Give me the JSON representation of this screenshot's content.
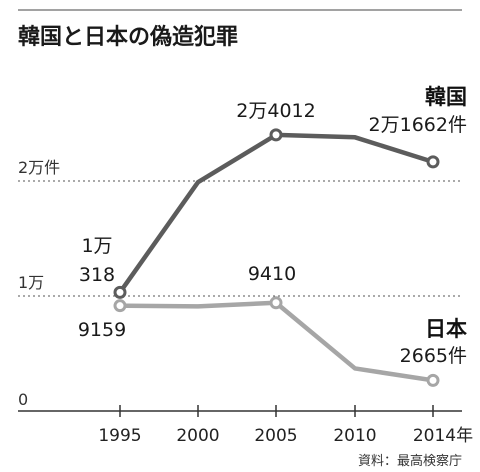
{
  "chart_data": {
    "type": "line",
    "title": "韓国と日本の偽造犯罪",
    "x": [
      1995,
      2000,
      2005,
      2010,
      2014
    ],
    "x_tick_labels": [
      "1995",
      "2000",
      "2005",
      "2010",
      "2014年"
    ],
    "y_tick_labels": [
      "0",
      "1万",
      "2万件"
    ],
    "y_ticks": [
      0,
      10000,
      20000
    ],
    "ylim": [
      0,
      26000
    ],
    "grid": "dotted horizontal at 1万 and 2万",
    "series": [
      {
        "name": "韓国",
        "color": "#5c5c5c",
        "values": [
          10318,
          19900,
          24012,
          23800,
          21662
        ],
        "point_labels": [
          {
            "index": 0,
            "lines": [
              "1万",
              "318"
            ]
          },
          {
            "index": 2,
            "lines": [
              "2万4012"
            ]
          },
          {
            "index": 4,
            "lines": [
              "2万1662件"
            ]
          }
        ]
      },
      {
        "name": "日本",
        "color": "#a6a6a6",
        "values": [
          9159,
          9100,
          9410,
          3700,
          2665
        ],
        "point_labels": [
          {
            "index": 0,
            "lines": [
              "9159"
            ]
          },
          {
            "index": 2,
            "lines": [
              "9410"
            ]
          },
          {
            "index": 4,
            "lines": [
              "2665件"
            ]
          }
        ]
      }
    ],
    "source": "資料：最高検察庁"
  }
}
